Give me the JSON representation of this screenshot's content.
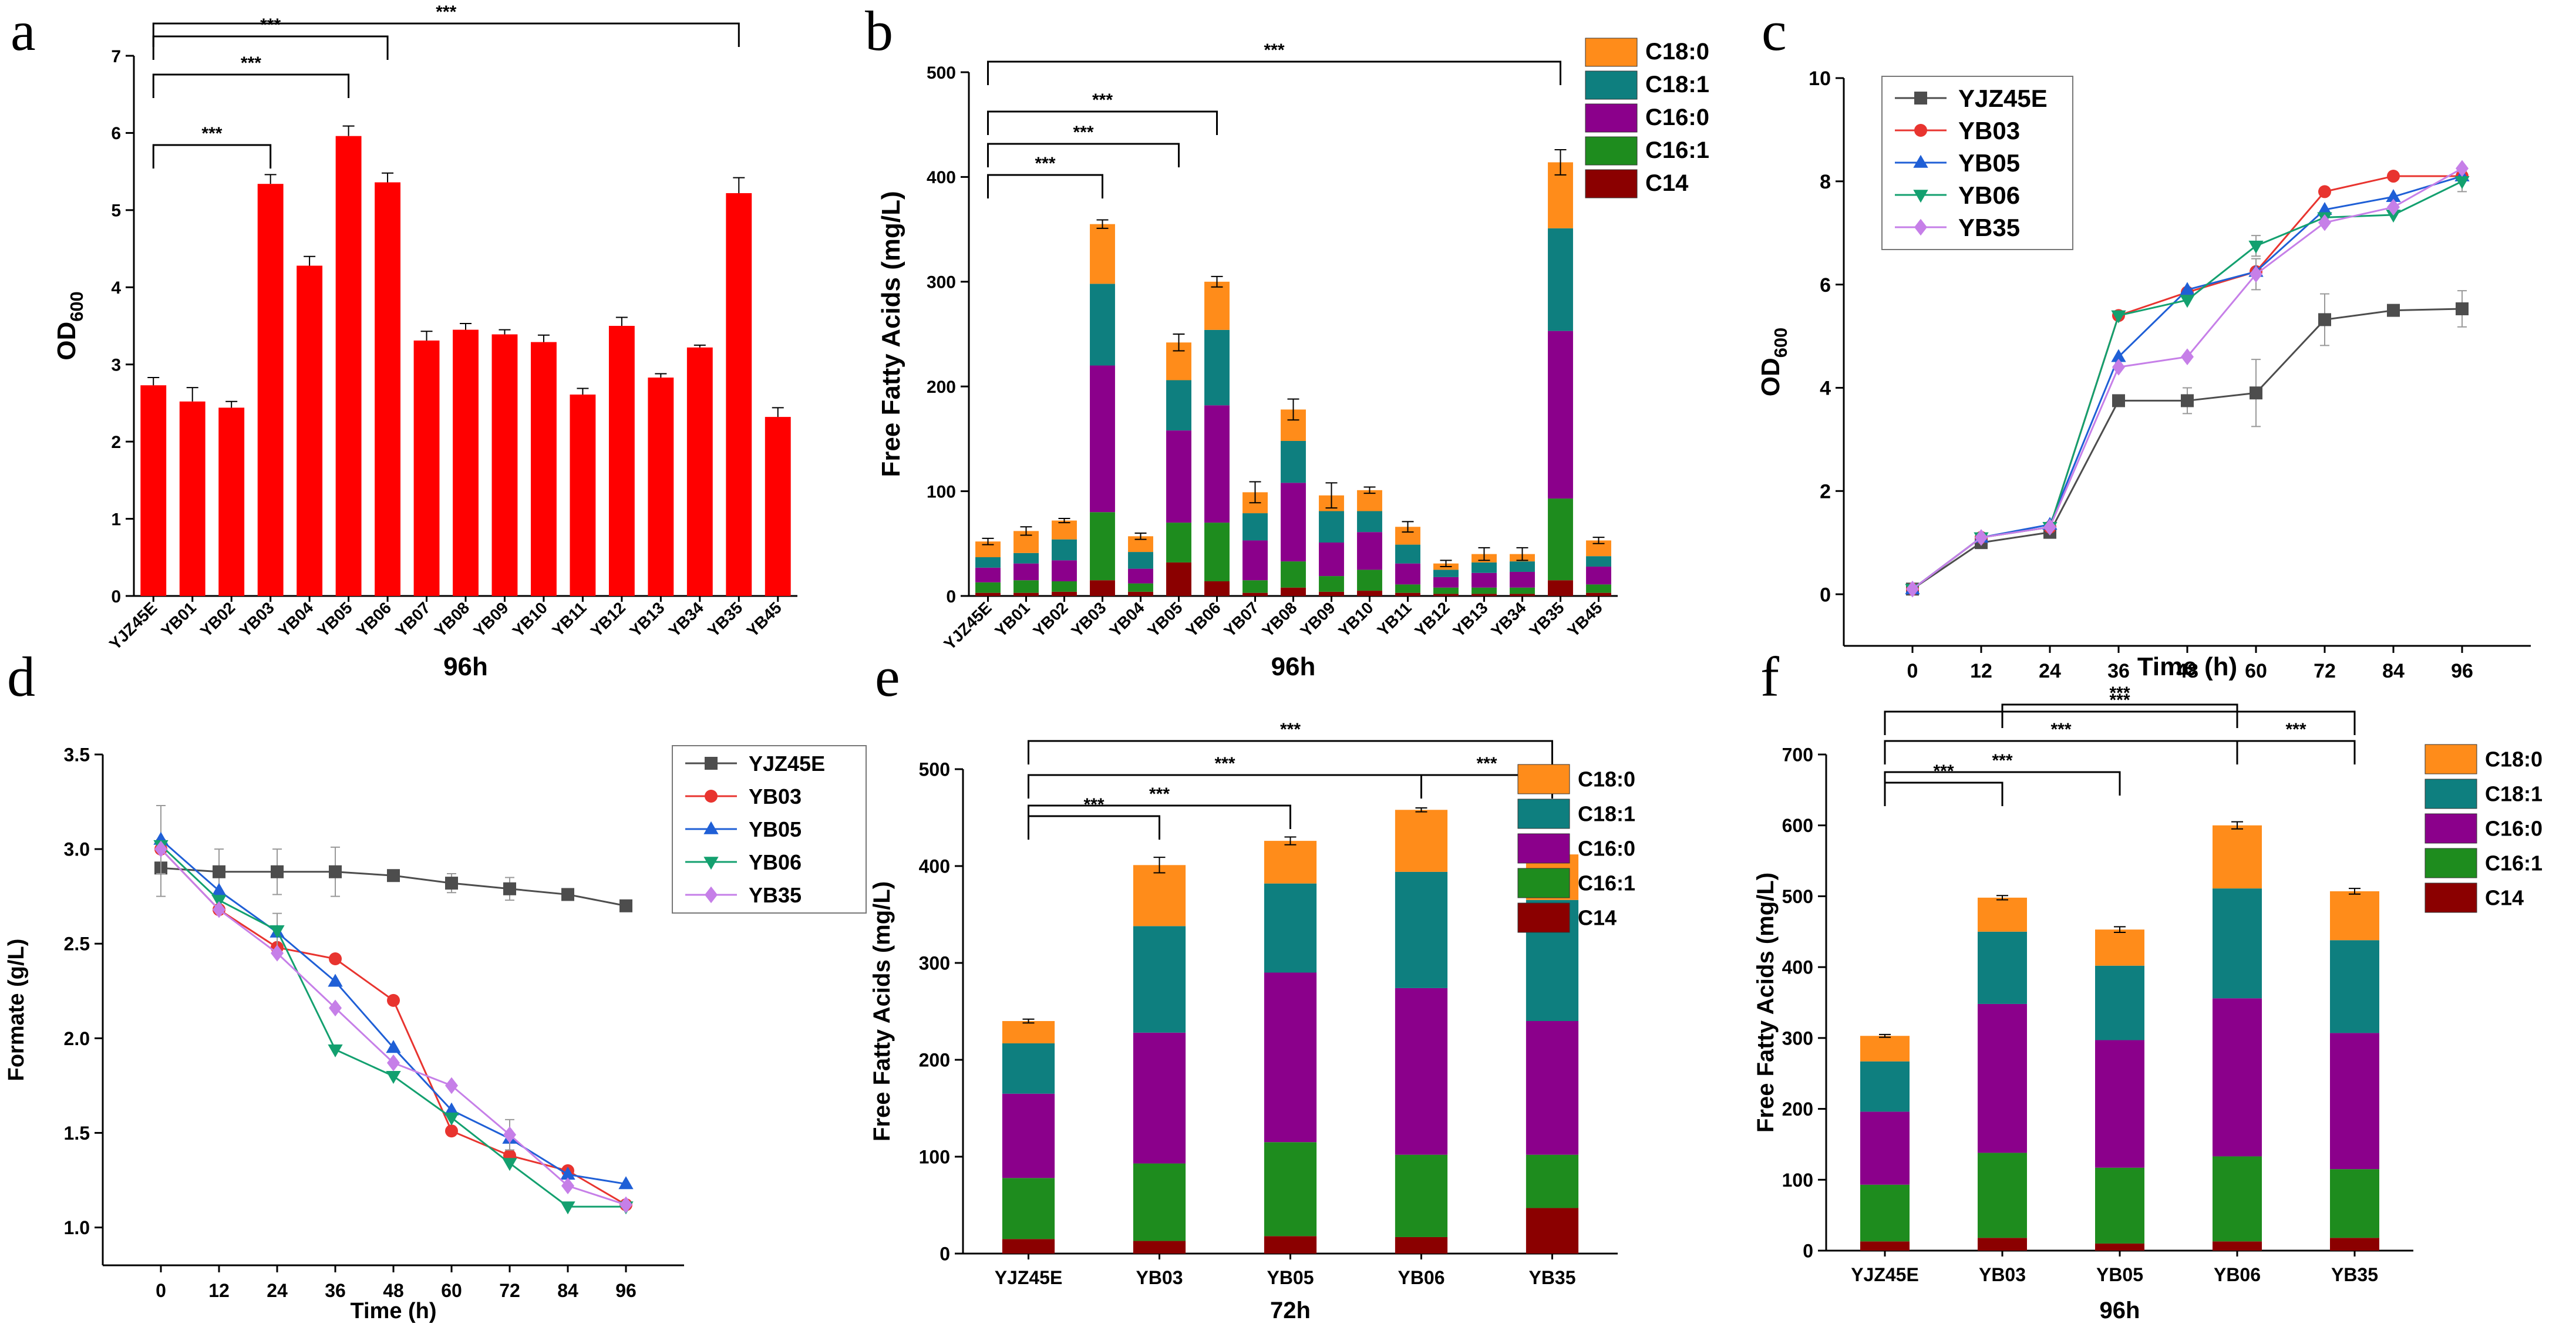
{
  "figure": {
    "colors": {
      "bar_red": "#ff0000",
      "C18_0": "#ff8c1a",
      "C18_1": "#0e7f7f",
      "C16_0": "#8b008b",
      "C16_1": "#1e8c1e",
      "C14": "#8b0000",
      "YJZ45E": "#4d4d4d",
      "YB03": "#e8342f",
      "YB05": "#1f5fd6",
      "YB06": "#13a06f",
      "YB35": "#c67fe8"
    }
  },
  "chart_data": [
    {
      "id": "a",
      "panel_label": "a",
      "type": "bar",
      "title": "",
      "xlabel": "96h",
      "ylabel_main": "OD",
      "ylabel_sub": "600",
      "ylim": [
        0,
        7
      ],
      "yticks": [
        "0",
        "1",
        "2",
        "3",
        "4",
        "5",
        "6",
        "7"
      ],
      "categories": [
        "YJZ45E",
        "YB01",
        "YB02",
        "YB03",
        "YB04",
        "YB05",
        "YB06",
        "YB07",
        "YB08",
        "YB09",
        "YB10",
        "YB11",
        "YB12",
        "YB13",
        "YB34",
        "YB35",
        "YB45"
      ],
      "values": [
        2.73,
        2.52,
        2.44,
        5.34,
        4.28,
        5.96,
        5.36,
        3.31,
        3.45,
        3.39,
        3.29,
        2.61,
        3.5,
        2.83,
        3.22,
        5.22,
        2.32
      ],
      "errors": [
        0.1,
        0.18,
        0.08,
        0.12,
        0.12,
        0.13,
        0.12,
        0.12,
        0.08,
        0.06,
        0.09,
        0.08,
        0.11,
        0.05,
        0.03,
        0.2,
        0.12
      ],
      "significance": [
        {
          "from": "YJZ45E",
          "to": "YB03",
          "label": "***"
        },
        {
          "from": "YJZ45E",
          "to": "YB05",
          "label": "***"
        },
        {
          "from": "YJZ45E",
          "to": "YB06",
          "label": "***"
        },
        {
          "from": "YJZ45E",
          "to": "YB35",
          "label": "***"
        }
      ]
    },
    {
      "id": "b",
      "panel_label": "b",
      "type": "bar",
      "stacked": true,
      "title": "",
      "xlabel": "96h",
      "ylabel": "Free Fatty Acids (mg/L)",
      "ylim": [
        0,
        500
      ],
      "yticks": [
        "0",
        "100",
        "200",
        "300",
        "400",
        "500"
      ],
      "categories": [
        "YJZ45E",
        "YB01",
        "YB02",
        "YB03",
        "YB04",
        "YB05",
        "YB06",
        "YB07",
        "YB08",
        "YB09",
        "YB10",
        "YB11",
        "YB12",
        "YB13",
        "YB34",
        "YB35",
        "YB45"
      ],
      "legend": [
        "C18:0",
        "C18:1",
        "C16:0",
        "C16:1",
        "C14"
      ],
      "series": [
        {
          "name": "C14",
          "values": [
            3,
            3,
            4,
            15,
            4,
            32,
            14,
            3,
            8,
            4,
            5,
            3,
            2,
            2,
            2,
            15,
            3
          ]
        },
        {
          "name": "C16:1",
          "values": [
            10,
            12,
            10,
            65,
            8,
            38,
            56,
            12,
            25,
            15,
            20,
            8,
            6,
            6,
            6,
            78,
            8
          ]
        },
        {
          "name": "C16:0",
          "values": [
            14,
            16,
            20,
            140,
            14,
            88,
            112,
            38,
            75,
            32,
            36,
            20,
            10,
            14,
            15,
            160,
            17
          ]
        },
        {
          "name": "C18:1",
          "values": [
            10,
            10,
            20,
            78,
            16,
            48,
            72,
            26,
            40,
            30,
            20,
            18,
            7,
            10,
            10,
            98,
            10
          ]
        },
        {
          "name": "C18:0",
          "values": [
            15,
            21,
            18,
            57,
            15,
            36,
            46,
            20,
            30,
            15,
            20,
            17,
            6,
            8,
            7,
            63,
            15
          ]
        }
      ],
      "totals": [
        52,
        62,
        72,
        355,
        57,
        242,
        300,
        99,
        178,
        96,
        101,
        66,
        31,
        40,
        40,
        414,
        53
      ],
      "errors": [
        3,
        4,
        2,
        4,
        3,
        8,
        5,
        10,
        10,
        12,
        3,
        5,
        3,
        6,
        6,
        12,
        3
      ],
      "significance": [
        {
          "from": "YJZ45E",
          "to": "YB03",
          "label": "***"
        },
        {
          "from": "YJZ45E",
          "to": "YB05",
          "label": "***"
        },
        {
          "from": "YJZ45E",
          "to": "YB06",
          "label": "***"
        },
        {
          "from": "YJZ45E",
          "to": "YB35",
          "label": "***"
        }
      ]
    },
    {
      "id": "c",
      "panel_label": "c",
      "type": "line",
      "title": "",
      "xlabel": "Time (h)",
      "ylabel_main": "OD",
      "ylabel_sub": "600",
      "x": [
        0,
        12,
        24,
        36,
        48,
        60,
        72,
        84,
        96
      ],
      "xticks": [
        "0",
        "12",
        "24",
        "36",
        "48",
        "60",
        "72",
        "84",
        "96"
      ],
      "xlim": [
        -12,
        108
      ],
      "ylim": [
        -1,
        10
      ],
      "yticks": [
        "0",
        "2",
        "4",
        "6",
        "8",
        "10"
      ],
      "legend_position": "top-left",
      "series": [
        {
          "name": "YJZ45E",
          "marker": "square",
          "values": [
            0.1,
            1.0,
            1.2,
            3.75,
            3.75,
            3.9,
            5.32,
            5.5,
            5.53
          ],
          "errors": [
            0,
            0,
            0,
            0,
            0.25,
            0.65,
            0.5,
            0,
            0.35
          ]
        },
        {
          "name": "YB03",
          "marker": "circle",
          "values": [
            0.1,
            1.1,
            1.3,
            5.4,
            5.85,
            6.25,
            7.8,
            8.1,
            8.1
          ],
          "errors": [
            0,
            0,
            0,
            0,
            0,
            0,
            0,
            0,
            0
          ]
        },
        {
          "name": "YB05",
          "marker": "triangle",
          "values": [
            0.1,
            1.1,
            1.35,
            4.6,
            5.9,
            6.25,
            7.45,
            7.7,
            8.1
          ],
          "errors": [
            0,
            0,
            0,
            0,
            0,
            0,
            0,
            0,
            0
          ]
        },
        {
          "name": "YB06",
          "marker": "tri-down",
          "values": [
            0.1,
            1.1,
            1.3,
            5.4,
            5.7,
            6.75,
            7.3,
            7.35,
            8.0
          ],
          "errors": [
            0,
            0,
            0,
            0,
            0,
            0.2,
            0,
            0,
            0.2
          ]
        },
        {
          "name": "YB35",
          "marker": "diamond",
          "values": [
            0.1,
            1.1,
            1.3,
            4.4,
            4.6,
            6.2,
            7.2,
            7.5,
            8.25
          ],
          "errors": [
            0,
            0,
            0,
            0,
            0,
            0.3,
            0,
            0,
            0
          ]
        }
      ]
    },
    {
      "id": "d",
      "panel_label": "d",
      "type": "line",
      "title": "",
      "xlabel": "Time (h)",
      "ylabel": "Formate (g/L)",
      "x": [
        0,
        12,
        24,
        36,
        48,
        60,
        72,
        84,
        96
      ],
      "xticks": [
        "0",
        "12",
        "24",
        "36",
        "48",
        "60",
        "72",
        "84",
        "96"
      ],
      "xlim": [
        -12,
        108
      ],
      "ylim": [
        0.8,
        3.5
      ],
      "yticks": [
        "1.0",
        "1.5",
        "2.0",
        "2.5",
        "3.0",
        "3.5"
      ],
      "legend_position": "top-right",
      "series": [
        {
          "name": "YJZ45E",
          "marker": "square",
          "values": [
            2.9,
            2.88,
            2.88,
            2.88,
            2.86,
            2.82,
            2.79,
            2.76,
            2.7
          ],
          "errors": [
            0.15,
            0.12,
            0.12,
            0.13,
            0,
            0.05,
            0.06,
            0,
            0
          ]
        },
        {
          "name": "YB03",
          "marker": "circle",
          "values": [
            3.0,
            2.68,
            2.48,
            2.42,
            2.2,
            1.51,
            1.38,
            1.3,
            1.12
          ],
          "errors": [
            0,
            0,
            0,
            0,
            0,
            0,
            0,
            0,
            0
          ]
        },
        {
          "name": "YB05",
          "marker": "triangle",
          "values": [
            3.05,
            2.78,
            2.56,
            2.3,
            1.95,
            1.62,
            1.47,
            1.28,
            1.23
          ],
          "errors": [
            0.18,
            0,
            0.1,
            0,
            0,
            0,
            0,
            0,
            0
          ]
        },
        {
          "name": "YB06",
          "marker": "tri-down",
          "values": [
            3.02,
            2.73,
            2.57,
            1.94,
            1.8,
            1.58,
            1.34,
            1.11,
            1.11
          ],
          "errors": [
            0,
            0,
            0,
            0,
            0,
            0,
            0,
            0,
            0
          ]
        },
        {
          "name": "YB35",
          "marker": "diamond",
          "values": [
            3.0,
            2.68,
            2.45,
            2.16,
            1.87,
            1.75,
            1.49,
            1.22,
            1.12
          ],
          "errors": [
            0,
            0,
            0,
            0,
            0,
            0,
            0.08,
            0,
            0
          ]
        }
      ]
    },
    {
      "id": "e",
      "panel_label": "e",
      "type": "bar",
      "stacked": true,
      "title": "",
      "xlabel": "72h",
      "ylabel": "Free Fatty Acids (mg/L)",
      "ylim": [
        0,
        500
      ],
      "yticks": [
        "0",
        "100",
        "200",
        "300",
        "400",
        "500"
      ],
      "categories": [
        "YJZ45E",
        "YB03",
        "YB05",
        "YB06",
        "YB35"
      ],
      "legend": [
        "C18:0",
        "C18:1",
        "C16:0",
        "C16:1",
        "C14"
      ],
      "series": [
        {
          "name": "C14",
          "values": [
            15,
            13,
            18,
            17,
            47
          ]
        },
        {
          "name": "C16:1",
          "values": [
            63,
            80,
            97,
            85,
            55
          ]
        },
        {
          "name": "C16:0",
          "values": [
            87,
            135,
            175,
            172,
            138
          ]
        },
        {
          "name": "C18:1",
          "values": [
            52,
            110,
            92,
            120,
            125
          ]
        },
        {
          "name": "C18:0",
          "values": [
            23,
            63,
            44,
            64,
            47
          ]
        }
      ],
      "totals": [
        240,
        401,
        426,
        458,
        412
      ],
      "errors": [
        2,
        8,
        4,
        2,
        6
      ],
      "significance": [
        {
          "from": "YJZ45E",
          "to": "YB03",
          "label": "***"
        },
        {
          "from": "YJZ45E",
          "to": "YB05",
          "label": "***"
        },
        {
          "from": "YJZ45E",
          "to": "YB06",
          "label": "***"
        },
        {
          "from": "YB06",
          "to": "YB35",
          "label": "***"
        },
        {
          "from": "YJZ45E",
          "to": "YB35",
          "label": "***"
        }
      ]
    },
    {
      "id": "f",
      "panel_label": "f",
      "type": "bar",
      "stacked": true,
      "title": "",
      "xlabel": "96h",
      "ylabel": "Free Fatty Acids (mg/L)",
      "ylim": [
        0,
        700
      ],
      "yticks": [
        "0",
        "100",
        "200",
        "300",
        "400",
        "500",
        "600",
        "700"
      ],
      "categories": [
        "YJZ45E",
        "YB03",
        "YB05",
        "YB06",
        "YB35"
      ],
      "legend": [
        "C18:0",
        "C18:1",
        "C16:0",
        "C16:1",
        "C14"
      ],
      "series": [
        {
          "name": "C14",
          "values": [
            13,
            18,
            10,
            13,
            18
          ]
        },
        {
          "name": "C16:1",
          "values": [
            80,
            120,
            107,
            120,
            97
          ]
        },
        {
          "name": "C16:0",
          "values": [
            103,
            210,
            180,
            223,
            192
          ]
        },
        {
          "name": "C18:1",
          "values": [
            71,
            102,
            105,
            155,
            131
          ]
        },
        {
          "name": "C18:0",
          "values": [
            36,
            48,
            51,
            89,
            69
          ]
        }
      ],
      "totals": [
        303,
        498,
        453,
        600,
        507
      ],
      "errors": [
        2,
        3,
        4,
        5,
        4
      ],
      "significance": [
        {
          "from": "YJZ45E",
          "to": "YB03",
          "label": "***"
        },
        {
          "from": "YJZ45E",
          "to": "YB05",
          "label": "***"
        },
        {
          "from": "YJZ45E",
          "to": "YB06",
          "label": "***"
        },
        {
          "from": "YB06",
          "to": "YB35",
          "label": "***"
        },
        {
          "from": "YJZ45E",
          "to": "YB35",
          "label": "***"
        },
        {
          "from": "YB03",
          "to": "YB06",
          "label": "***"
        }
      ]
    }
  ]
}
